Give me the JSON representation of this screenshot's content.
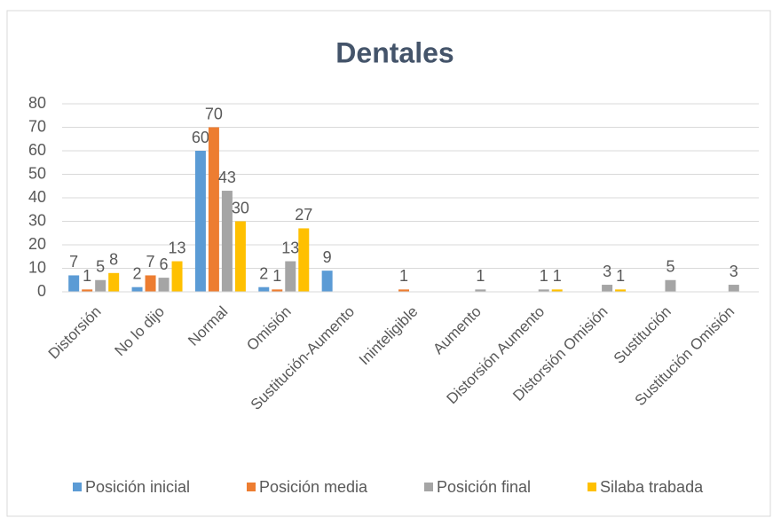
{
  "chart_data": {
    "type": "bar",
    "title": "Dentales",
    "categories": [
      "Distorsión",
      "No lo dijo",
      "Normal",
      "Omisión",
      "Sustitución-Aumento",
      "Ininteligible",
      "Aumento",
      "Distorsión Aumento",
      "Distorsión Omisión",
      "Sustitución",
      "Sustitución Omisión"
    ],
    "series": [
      {
        "name": "Posición inicial",
        "color": "#5b9bd5",
        "values": [
          7,
          2,
          60,
          2,
          9,
          0,
          0,
          0,
          0,
          0,
          0
        ]
      },
      {
        "name": "Posición media",
        "color": "#ed7d31",
        "values": [
          1,
          7,
          70,
          1,
          0,
          1,
          0,
          0,
          0,
          0,
          0
        ]
      },
      {
        "name": "Posición final",
        "color": "#a5a5a5",
        "values": [
          5,
          6,
          43,
          13,
          0,
          0,
          1,
          1,
          3,
          5,
          3
        ]
      },
      {
        "name": "Silaba trabada",
        "color": "#ffc000",
        "values": [
          8,
          13,
          30,
          27,
          0,
          0,
          0,
          1,
          1,
          0,
          0
        ]
      }
    ],
    "ylim": [
      0,
      80
    ],
    "yticks": [
      0,
      10,
      20,
      30,
      40,
      50,
      60,
      70,
      80
    ],
    "grid": true,
    "legend": "bottom"
  }
}
